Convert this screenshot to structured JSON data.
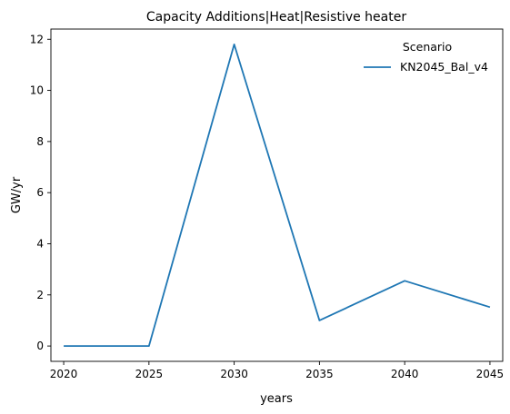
{
  "chart_data": {
    "type": "line",
    "title": "Capacity Additions|Heat|Resistive heater",
    "xlabel": "years",
    "ylabel": "GW/yr",
    "x": [
      2020,
      2025,
      2030,
      2035,
      2040,
      2045
    ],
    "xticks": [
      2020,
      2025,
      2030,
      2035,
      2040,
      2045
    ],
    "yticks": [
      0,
      2,
      4,
      6,
      8,
      10,
      12
    ],
    "xlim": [
      2019.25,
      2045.75
    ],
    "ylim": [
      -0.6,
      12.4
    ],
    "grid": false,
    "legend": {
      "title": "Scenario",
      "placement": "top-right"
    },
    "series": [
      {
        "name": "KN2045_Bal_v4",
        "color": "#1f77b4",
        "values": [
          0.0,
          0.0,
          11.8,
          1.0,
          2.55,
          1.52
        ]
      }
    ]
  }
}
